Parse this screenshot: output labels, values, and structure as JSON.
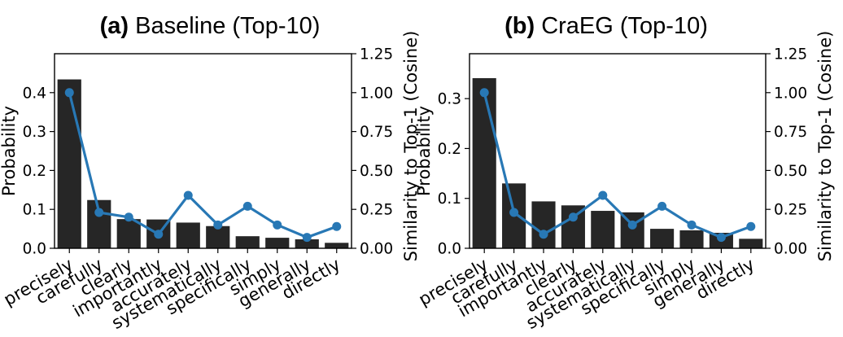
{
  "chart_data": [
    {
      "type": "bar",
      "panel_label": "(a)",
      "title": "Baseline (Top-10)",
      "categories": [
        "precisely",
        "carefully",
        "clearly",
        "importantly",
        "accurately",
        "systematically",
        "specifically",
        "simply",
        "generally",
        "directly"
      ],
      "series": [
        {
          "name": "Probability",
          "axis": "left",
          "type": "bar",
          "values": [
            0.434,
            0.124,
            0.075,
            0.074,
            0.066,
            0.057,
            0.031,
            0.027,
            0.023,
            0.014
          ]
        },
        {
          "name": "Similarity to Top-1 (Cosine)",
          "axis": "right",
          "type": "line",
          "values": [
            1.0,
            0.23,
            0.2,
            0.09,
            0.34,
            0.15,
            0.27,
            0.15,
            0.07,
            0.14
          ]
        }
      ],
      "ylabel": "Probability",
      "ylim": [
        0,
        0.5
      ],
      "yticks": [
        "0.0",
        "0.1",
        "0.2",
        "0.3",
        "0.4"
      ],
      "y2label": "Similarity to Top-1 (Cosine)",
      "y2lim": [
        0,
        1.25
      ],
      "y2ticks": [
        "0.00",
        "0.25",
        "0.50",
        "0.75",
        "1.00",
        "1.25"
      ]
    },
    {
      "type": "bar",
      "panel_label": "(b)",
      "title": "CraEG (Top-10)",
      "categories": [
        "precisely",
        "carefully",
        "importantly",
        "clearly",
        "accurately",
        "systematically",
        "specifically",
        "simply",
        "generally",
        "directly"
      ],
      "series": [
        {
          "name": "Probability",
          "axis": "left",
          "type": "bar",
          "values": [
            0.341,
            0.13,
            0.094,
            0.086,
            0.075,
            0.072,
            0.039,
            0.036,
            0.031,
            0.019
          ]
        },
        {
          "name": "Similarity to Top-1 (Cosine)",
          "axis": "right",
          "type": "line",
          "values": [
            1.0,
            0.23,
            0.09,
            0.2,
            0.34,
            0.15,
            0.27,
            0.15,
            0.07,
            0.14
          ]
        }
      ],
      "ylabel": "Probability",
      "ylim": [
        0,
        0.39
      ],
      "yticks": [
        "0.0",
        "0.1",
        "0.2",
        "0.3"
      ],
      "y2label": "Similarity to Top-1 (Cosine)",
      "y2lim": [
        0,
        1.25
      ],
      "y2ticks": [
        "0.00",
        "0.25",
        "0.50",
        "0.75",
        "1.00",
        "1.25"
      ]
    }
  ]
}
